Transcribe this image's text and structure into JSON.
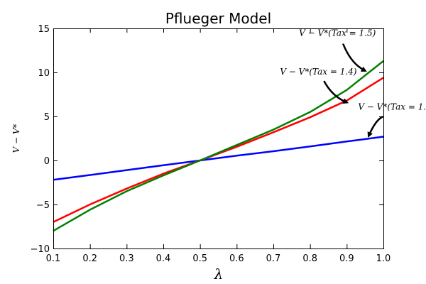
{
  "chart_data": {
    "type": "line",
    "title": "Pflueger Model",
    "xlabel": "λ",
    "ylabel": "V − V*",
    "xlim": [
      0.1,
      1.0
    ],
    "ylim": [
      -10,
      15
    ],
    "xticks": [
      0.1,
      0.2,
      0.3,
      0.4,
      0.5,
      0.6,
      0.7,
      0.8,
      0.9,
      1.0
    ],
    "xtick_labels": [
      "0.1",
      "0.2",
      "0.3",
      "0.4",
      "0.5",
      "0.6",
      "0.7",
      "0.8",
      "0.9",
      "1.0"
    ],
    "yticks": [
      -10,
      -5,
      0,
      5,
      10,
      15
    ],
    "ytick_labels": [
      "−10",
      "−5",
      "0",
      "5",
      "10",
      "15"
    ],
    "grid": false,
    "legend": "none",
    "series": [
      {
        "color": "#0000ff",
        "x": [
          0.1,
          0.2,
          0.3,
          0.4,
          0.5,
          0.6,
          0.7,
          0.8,
          0.9,
          1.0
        ],
        "y": [
          -2.2,
          -1.65,
          -1.1,
          -0.55,
          0.0,
          0.55,
          1.05,
          1.6,
          2.15,
          2.7
        ]
      },
      {
        "color": "#ff0000",
        "x": [
          0.1,
          0.2,
          0.3,
          0.4,
          0.5,
          0.6,
          0.7,
          0.8,
          0.9,
          1.0
        ],
        "y": [
          -7.0,
          -5.0,
          -3.2,
          -1.5,
          0.0,
          1.55,
          3.2,
          4.9,
          6.8,
          9.4
        ]
      },
      {
        "color": "#008000",
        "x": [
          0.1,
          0.2,
          0.3,
          0.4,
          0.5,
          0.6,
          0.7,
          0.8,
          0.9,
          1.0
        ],
        "y": [
          -8.0,
          -5.6,
          -3.5,
          -1.7,
          0.0,
          1.75,
          3.5,
          5.5,
          8.0,
          11.3
        ]
      }
    ],
    "annotations": [
      {
        "text": "V − V*(Tax = 1.5)",
        "point": [
          0.95,
          10.2
        ]
      },
      {
        "text": "V − V*(Tax = 1.4)",
        "point": [
          0.9,
          6.6
        ]
      },
      {
        "text": "V − V*(Tax = 1.",
        "point": [
          0.96,
          2.8
        ]
      }
    ]
  }
}
